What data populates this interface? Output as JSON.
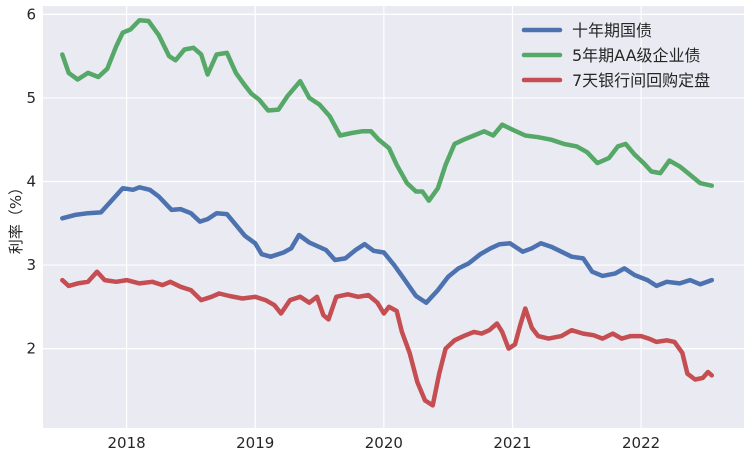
{
  "chart_data": {
    "type": "line",
    "title": "",
    "xlabel": "",
    "ylabel": "利率（%）",
    "xlim": [
      2017.35,
      2022.8
    ],
    "ylim": [
      1.05,
      6.1
    ],
    "x_ticks": [
      2018,
      2019,
      2020,
      2021,
      2022
    ],
    "x_tick_labels": [
      "2018",
      "2019",
      "2020",
      "2021",
      "2022"
    ],
    "y_ticks": [
      2,
      3,
      4,
      5,
      6
    ],
    "y_tick_labels": [
      "2",
      "3",
      "4",
      "5",
      "6"
    ],
    "grid": true,
    "legend_position": "top-right",
    "series": [
      {
        "name": "十年期国债",
        "color": "#4c72b0",
        "points": [
          [
            2017.5,
            3.56
          ],
          [
            2017.6,
            3.6
          ],
          [
            2017.7,
            3.62
          ],
          [
            2017.8,
            3.63
          ],
          [
            2017.9,
            3.8
          ],
          [
            2017.97,
            3.92
          ],
          [
            2018.05,
            3.9
          ],
          [
            2018.1,
            3.93
          ],
          [
            2018.18,
            3.9
          ],
          [
            2018.25,
            3.82
          ],
          [
            2018.35,
            3.66
          ],
          [
            2018.42,
            3.67
          ],
          [
            2018.5,
            3.62
          ],
          [
            2018.57,
            3.52
          ],
          [
            2018.63,
            3.55
          ],
          [
            2018.7,
            3.62
          ],
          [
            2018.78,
            3.61
          ],
          [
            2018.85,
            3.48
          ],
          [
            2018.92,
            3.35
          ],
          [
            2019.0,
            3.26
          ],
          [
            2019.05,
            3.13
          ],
          [
            2019.12,
            3.1
          ],
          [
            2019.22,
            3.15
          ],
          [
            2019.28,
            3.2
          ],
          [
            2019.34,
            3.36
          ],
          [
            2019.42,
            3.27
          ],
          [
            2019.55,
            3.18
          ],
          [
            2019.62,
            3.06
          ],
          [
            2019.7,
            3.08
          ],
          [
            2019.78,
            3.18
          ],
          [
            2019.85,
            3.25
          ],
          [
            2019.92,
            3.17
          ],
          [
            2020.0,
            3.15
          ],
          [
            2020.08,
            3.0
          ],
          [
            2020.15,
            2.85
          ],
          [
            2020.25,
            2.63
          ],
          [
            2020.33,
            2.55
          ],
          [
            2020.42,
            2.7
          ],
          [
            2020.5,
            2.86
          ],
          [
            2020.58,
            2.96
          ],
          [
            2020.66,
            3.02
          ],
          [
            2020.75,
            3.13
          ],
          [
            2020.83,
            3.2
          ],
          [
            2020.9,
            3.25
          ],
          [
            2020.98,
            3.26
          ],
          [
            2021.08,
            3.16
          ],
          [
            2021.15,
            3.2
          ],
          [
            2021.22,
            3.26
          ],
          [
            2021.3,
            3.22
          ],
          [
            2021.38,
            3.16
          ],
          [
            2021.46,
            3.1
          ],
          [
            2021.55,
            3.08
          ],
          [
            2021.62,
            2.92
          ],
          [
            2021.7,
            2.87
          ],
          [
            2021.8,
            2.9
          ],
          [
            2021.87,
            2.96
          ],
          [
            2021.95,
            2.88
          ],
          [
            2022.05,
            2.82
          ],
          [
            2022.12,
            2.75
          ],
          [
            2022.2,
            2.8
          ],
          [
            2022.3,
            2.78
          ],
          [
            2022.38,
            2.82
          ],
          [
            2022.46,
            2.77
          ],
          [
            2022.55,
            2.82
          ]
        ]
      },
      {
        "name": "5年期AA级企业债",
        "color": "#55a868",
        "points": [
          [
            2017.5,
            5.52
          ],
          [
            2017.55,
            5.3
          ],
          [
            2017.62,
            5.22
          ],
          [
            2017.7,
            5.3
          ],
          [
            2017.78,
            5.25
          ],
          [
            2017.85,
            5.35
          ],
          [
            2017.92,
            5.62
          ],
          [
            2017.97,
            5.78
          ],
          [
            2018.03,
            5.82
          ],
          [
            2018.1,
            5.93
          ],
          [
            2018.17,
            5.92
          ],
          [
            2018.25,
            5.75
          ],
          [
            2018.33,
            5.5
          ],
          [
            2018.38,
            5.45
          ],
          [
            2018.45,
            5.58
          ],
          [
            2018.52,
            5.6
          ],
          [
            2018.58,
            5.52
          ],
          [
            2018.63,
            5.28
          ],
          [
            2018.7,
            5.52
          ],
          [
            2018.78,
            5.54
          ],
          [
            2018.85,
            5.3
          ],
          [
            2018.92,
            5.15
          ],
          [
            2018.97,
            5.05
          ],
          [
            2019.03,
            4.98
          ],
          [
            2019.1,
            4.85
          ],
          [
            2019.18,
            4.86
          ],
          [
            2019.25,
            5.02
          ],
          [
            2019.35,
            5.2
          ],
          [
            2019.42,
            5.0
          ],
          [
            2019.5,
            4.92
          ],
          [
            2019.58,
            4.78
          ],
          [
            2019.66,
            4.55
          ],
          [
            2019.75,
            4.58
          ],
          [
            2019.83,
            4.6
          ],
          [
            2019.9,
            4.6
          ],
          [
            2019.96,
            4.5
          ],
          [
            2020.04,
            4.4
          ],
          [
            2020.1,
            4.2
          ],
          [
            2020.18,
            3.98
          ],
          [
            2020.25,
            3.88
          ],
          [
            2020.3,
            3.88
          ],
          [
            2020.35,
            3.77
          ],
          [
            2020.42,
            3.92
          ],
          [
            2020.48,
            4.2
          ],
          [
            2020.55,
            4.45
          ],
          [
            2020.62,
            4.5
          ],
          [
            2020.7,
            4.55
          ],
          [
            2020.78,
            4.6
          ],
          [
            2020.85,
            4.55
          ],
          [
            2020.92,
            4.68
          ],
          [
            2021.0,
            4.62
          ],
          [
            2021.1,
            4.55
          ],
          [
            2021.2,
            4.53
          ],
          [
            2021.3,
            4.5
          ],
          [
            2021.4,
            4.45
          ],
          [
            2021.5,
            4.42
          ],
          [
            2021.58,
            4.35
          ],
          [
            2021.66,
            4.22
          ],
          [
            2021.75,
            4.28
          ],
          [
            2021.82,
            4.42
          ],
          [
            2021.88,
            4.45
          ],
          [
            2021.95,
            4.32
          ],
          [
            2022.02,
            4.22
          ],
          [
            2022.08,
            4.12
          ],
          [
            2022.15,
            4.1
          ],
          [
            2022.22,
            4.25
          ],
          [
            2022.3,
            4.18
          ],
          [
            2022.38,
            4.08
          ],
          [
            2022.46,
            3.98
          ],
          [
            2022.55,
            3.95
          ]
        ]
      },
      {
        "name": "7天银行间回购定盘",
        "color": "#c44e52",
        "points": [
          [
            2017.5,
            2.82
          ],
          [
            2017.55,
            2.75
          ],
          [
            2017.62,
            2.78
          ],
          [
            2017.7,
            2.8
          ],
          [
            2017.77,
            2.92
          ],
          [
            2017.83,
            2.82
          ],
          [
            2017.92,
            2.8
          ],
          [
            2018.0,
            2.82
          ],
          [
            2018.1,
            2.78
          ],
          [
            2018.2,
            2.8
          ],
          [
            2018.28,
            2.76
          ],
          [
            2018.34,
            2.8
          ],
          [
            2018.42,
            2.74
          ],
          [
            2018.5,
            2.7
          ],
          [
            2018.58,
            2.58
          ],
          [
            2018.66,
            2.62
          ],
          [
            2018.72,
            2.66
          ],
          [
            2018.8,
            2.63
          ],
          [
            2018.9,
            2.6
          ],
          [
            2019.0,
            2.62
          ],
          [
            2019.08,
            2.58
          ],
          [
            2019.15,
            2.52
          ],
          [
            2019.2,
            2.42
          ],
          [
            2019.27,
            2.58
          ],
          [
            2019.35,
            2.62
          ],
          [
            2019.42,
            2.55
          ],
          [
            2019.48,
            2.62
          ],
          [
            2019.53,
            2.4
          ],
          [
            2019.57,
            2.35
          ],
          [
            2019.63,
            2.62
          ],
          [
            2019.72,
            2.65
          ],
          [
            2019.8,
            2.62
          ],
          [
            2019.88,
            2.64
          ],
          [
            2019.95,
            2.55
          ],
          [
            2020.0,
            2.42
          ],
          [
            2020.04,
            2.5
          ],
          [
            2020.1,
            2.45
          ],
          [
            2020.14,
            2.2
          ],
          [
            2020.2,
            1.95
          ],
          [
            2020.26,
            1.6
          ],
          [
            2020.32,
            1.38
          ],
          [
            2020.38,
            1.32
          ],
          [
            2020.43,
            1.7
          ],
          [
            2020.48,
            2.0
          ],
          [
            2020.55,
            2.1
          ],
          [
            2020.62,
            2.15
          ],
          [
            2020.7,
            2.2
          ],
          [
            2020.76,
            2.18
          ],
          [
            2020.82,
            2.22
          ],
          [
            2020.88,
            2.3
          ],
          [
            2020.92,
            2.2
          ],
          [
            2020.97,
            2.0
          ],
          [
            2021.02,
            2.05
          ],
          [
            2021.06,
            2.28
          ],
          [
            2021.1,
            2.48
          ],
          [
            2021.15,
            2.25
          ],
          [
            2021.2,
            2.15
          ],
          [
            2021.28,
            2.12
          ],
          [
            2021.38,
            2.15
          ],
          [
            2021.46,
            2.22
          ],
          [
            2021.55,
            2.18
          ],
          [
            2021.63,
            2.16
          ],
          [
            2021.7,
            2.12
          ],
          [
            2021.78,
            2.18
          ],
          [
            2021.85,
            2.12
          ],
          [
            2021.92,
            2.15
          ],
          [
            2022.0,
            2.15
          ],
          [
            2022.06,
            2.12
          ],
          [
            2022.12,
            2.08
          ],
          [
            2022.2,
            2.1
          ],
          [
            2022.26,
            2.08
          ],
          [
            2022.32,
            1.95
          ],
          [
            2022.36,
            1.7
          ],
          [
            2022.42,
            1.63
          ],
          [
            2022.48,
            1.65
          ],
          [
            2022.52,
            1.72
          ],
          [
            2022.55,
            1.68
          ]
        ]
      }
    ]
  }
}
